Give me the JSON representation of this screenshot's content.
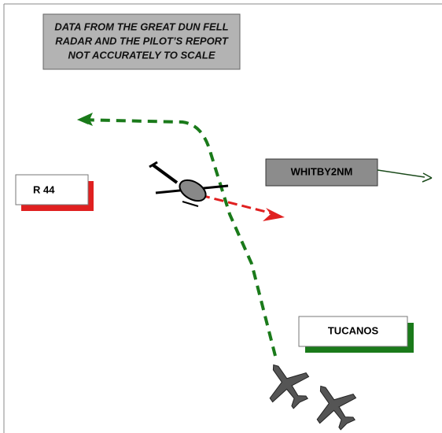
{
  "header": {
    "lines": [
      "DATA FROM THE GREAT DUN FELL",
      "RADAR AND THE PILOT’S REPORT",
      "NOT ACCURATELY TO SCALE"
    ]
  },
  "labels": {
    "r44": "R 44",
    "whitby": "WHITBY2NM",
    "tucanos": "TUCANOS"
  }
}
